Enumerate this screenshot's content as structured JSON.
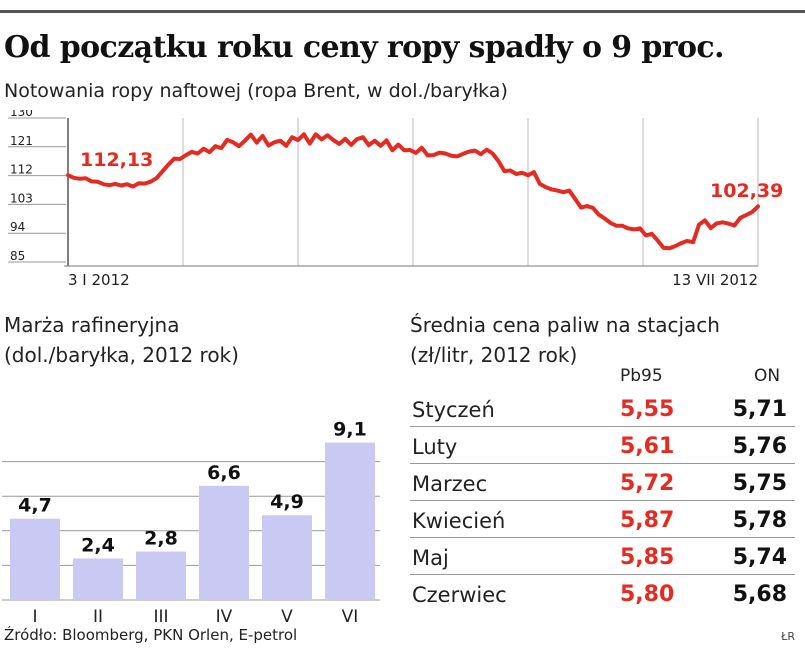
{
  "title": "Od początku roku ceny ropy spadły o 9 proc.",
  "subtitle": "Notowania ropy naftowej (ropa Brent, w dol./baryłka)",
  "source": "Źródło: Bloomberg, PKN Orlen, E-petrol",
  "credit": "ŁR",
  "chart_data": [
    {
      "type": "line",
      "title": "Notowania ropy naftowej (ropa Brent, w dol./baryłka)",
      "ylim": [
        85,
        130
      ],
      "yticks": [
        "85",
        "94",
        "103",
        "112",
        "121",
        "130"
      ],
      "x_labels": [
        "3 I 2012",
        "13 VII 2012"
      ],
      "start_label": "112,13",
      "end_label": "102,39",
      "series": [
        {
          "values": [
            112.13,
            111.3,
            111.0,
            111.2,
            110.2,
            110.1,
            109.3,
            109.0,
            109.4,
            108.9,
            109.3,
            108.6,
            109.6,
            109.5,
            110.1,
            111.2,
            113.3,
            115.4,
            117.3,
            117.2,
            118.4,
            119.4,
            118.9,
            120.4,
            119.3,
            121.2,
            120.6,
            123.2,
            122.4,
            121.2,
            122.9,
            124.8,
            122.3,
            124.4,
            121.4,
            122.4,
            122.9,
            121.3,
            124.0,
            123.1,
            124.9,
            122.0,
            124.9,
            123.3,
            124.6,
            123.1,
            121.9,
            123.5,
            121.6,
            123.4,
            124.0,
            121.5,
            122.9,
            121.3,
            123.0,
            119.9,
            121.7,
            119.9,
            120.0,
            119.1,
            120.7,
            118.3,
            118.4,
            119.2,
            118.9,
            118.2,
            118.0,
            118.8,
            119.5,
            119.8,
            118.7,
            120.1,
            118.9,
            116.5,
            113.4,
            113.6,
            112.5,
            112.9,
            112.1,
            113.1,
            109.4,
            108.4,
            107.7,
            107.3,
            106.8,
            107.3,
            104.7,
            102.0,
            102.5,
            101.9,
            99.8,
            98.6,
            97.2,
            96.3,
            96.3,
            95.5,
            95.2,
            95.5,
            93.3,
            93.8,
            91.7,
            89.4,
            89.3,
            90.0,
            90.9,
            91.6,
            91.2,
            96.7,
            98.0,
            95.6,
            97.1,
            97.4,
            97.0,
            96.4,
            98.8,
            99.7,
            100.6,
            102.39
          ]
        }
      ]
    },
    {
      "type": "bar",
      "title": "Marża rafineryjna",
      "unit": "(dol./baryłka, 2012 rok)",
      "categories": [
        "I",
        "II",
        "III",
        "IV",
        "V",
        "VI"
      ],
      "values": [
        4.7,
        2.4,
        2.8,
        6.6,
        4.9,
        9.1
      ],
      "value_labels": [
        "4,7",
        "2,4",
        "2,8",
        "6,6",
        "4,9",
        "9,1"
      ],
      "ylim": [
        0,
        10
      ],
      "color": "#c9c9f4"
    },
    {
      "type": "table",
      "title": "Średnia cena paliw na stacjach",
      "unit": "(zł/litr, 2012 rok)",
      "columns": [
        "Pb95",
        "ON"
      ],
      "rows": [
        {
          "month": "Styczeń",
          "pb95": "5,55",
          "on": "5,71"
        },
        {
          "month": "Luty",
          "pb95": "5,61",
          "on": "5,76"
        },
        {
          "month": "Marzec",
          "pb95": "5,72",
          "on": "5,75"
        },
        {
          "month": "Kwiecień",
          "pb95": "5,87",
          "on": "5,78"
        },
        {
          "month": "Maj",
          "pb95": "5,85",
          "on": "5,74"
        },
        {
          "month": "Czerwiec",
          "pb95": "5,80",
          "on": "5,68"
        }
      ]
    }
  ],
  "colors": {
    "accent": "#e52a22",
    "bar": "#c9c9f4",
    "grid": "#b8b8b8",
    "text": "#1a1a1a"
  }
}
